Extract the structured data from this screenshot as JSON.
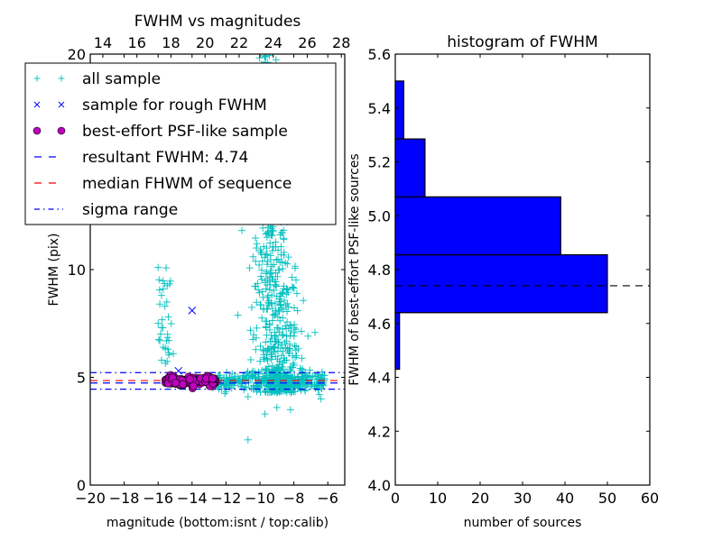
{
  "chart_data": [
    {
      "type": "scatter",
      "title": "FWHM vs magnitudes",
      "xlabel": "magnitude (bottom:isnt / top:calib)",
      "ylabel": "FWHM (pix)",
      "xlim": [
        -20,
        -5
      ],
      "ylim": [
        0,
        20
      ],
      "xticks": [
        -20,
        -18,
        -16,
        -14,
        -12,
        -10,
        -8,
        -6
      ],
      "xtick_labels": [
        "−20",
        "−18",
        "−16",
        "−14",
        "−12",
        "−10",
        "−8",
        "−6"
      ],
      "yticks": [
        0,
        5,
        10,
        20
      ],
      "ytick_labels": [
        "0",
        "5",
        "10",
        "20"
      ],
      "top_axis": {
        "xlim": [
          13.26,
          28.2
        ],
        "xticks": [
          14,
          16,
          18,
          20,
          22,
          24,
          26,
          28
        ],
        "xtick_labels": [
          "14",
          "16",
          "18",
          "20",
          "22",
          "24",
          "26",
          "28"
        ]
      },
      "legend": {
        "placement": "upper-left",
        "entries": [
          {
            "label": "all sample",
            "marker": "plus",
            "color": "#00bfbf"
          },
          {
            "label": "sample for rough FWHM",
            "marker": "x",
            "color": "#0000ff"
          },
          {
            "label": "best-effort PSF-like sample",
            "marker": "circle",
            "color": "#bf00bf"
          },
          {
            "label": "resultant FWHM: 4.74",
            "marker": "dashed-line",
            "color": "#0000ff"
          },
          {
            "label": "median FHWM of sequence",
            "marker": "dashed-line",
            "color": "#ff0000"
          },
          {
            "label": "sigma range",
            "marker": "dashdot-line",
            "color": "#0000ff"
          }
        ]
      },
      "hlines": [
        {
          "name": "resultant FWHM",
          "y": 4.74,
          "style": "dashed",
          "color": "#0000ff"
        },
        {
          "name": "median FWHM",
          "y": 4.85,
          "style": "dashed",
          "color": "#ff0000"
        },
        {
          "name": "sigma range low",
          "y": 4.45,
          "style": "dashdot",
          "color": "#0000ff"
        },
        {
          "name": "sigma range high",
          "y": 5.22,
          "style": "dashdot",
          "color": "#0000ff"
        }
      ],
      "series": [
        {
          "name": "all sample",
          "marker": "plus",
          "color": "#00bfbf",
          "clusters": [
            {
              "desc": "bright outliers",
              "x_range": [
                -16.1,
                -15.2
              ],
              "y_range": [
                5.2,
                10.1
              ],
              "n": 25
            },
            {
              "desc": "faint vertical plume",
              "x_range": [
                -10.5,
                -7.4
              ],
              "y_range": [
                3.5,
                20
              ],
              "n": 650
            },
            {
              "desc": "horizontal band",
              "x_range": [
                -12.5,
                -6.2
              ],
              "y_range": [
                4.3,
                5.3
              ],
              "n": 300
            }
          ],
          "points": [
            {
              "x": -16.0,
              "y": 10.1
            },
            {
              "x": -15.7,
              "y": 9.1
            },
            {
              "x": -15.8,
              "y": 8.8
            },
            {
              "x": -15.9,
              "y": 8.4
            },
            {
              "x": -15.6,
              "y": 8.3
            },
            {
              "x": -15.4,
              "y": 7.8
            },
            {
              "x": -15.8,
              "y": 7.3
            },
            {
              "x": -15.9,
              "y": 6.7
            },
            {
              "x": -15.7,
              "y": 6.4
            },
            {
              "x": -15.1,
              "y": 6.1
            },
            {
              "x": -15.8,
              "y": 5.8
            },
            {
              "x": -10.7,
              "y": 2.1
            },
            {
              "x": -9.7,
              "y": 3.3
            },
            {
              "x": -9.0,
              "y": 3.6
            },
            {
              "x": -8.2,
              "y": 3.5
            },
            {
              "x": -10.7,
              "y": 4.1
            },
            {
              "x": -6.5,
              "y": 4.2
            },
            {
              "x": -6.4,
              "y": 4.0
            }
          ]
        },
        {
          "name": "sample for rough FWHM",
          "marker": "x",
          "color": "#0000ff",
          "points": [
            {
              "x": -14.0,
              "y": 8.1
            },
            {
              "x": -14.8,
              "y": 5.3
            }
          ]
        },
        {
          "name": "best-effort PSF-like sample",
          "marker": "circle",
          "color": "#bf00bf",
          "clusters": [
            {
              "desc": "PSF-like cluster",
              "x_range": [
                -15.6,
                -12.6
              ],
              "y_range": [
                4.5,
                5.2
              ],
              "n": 99
            }
          ]
        }
      ]
    },
    {
      "type": "bar",
      "orientation": "horizontal",
      "title": "histogram of FWHM",
      "xlabel": "number of sources",
      "ylabel": "FWHM of best-effort PSF-like sources",
      "xlim": [
        0,
        60
      ],
      "ylim": [
        4.0,
        5.6
      ],
      "xticks": [
        0,
        10,
        20,
        30,
        40,
        50,
        60
      ],
      "xtick_labels": [
        "0",
        "10",
        "20",
        "30",
        "40",
        "50",
        "60"
      ],
      "yticks": [
        4.0,
        4.2,
        4.4,
        4.6,
        4.8,
        5.0,
        5.2,
        5.4,
        5.6
      ],
      "ytick_labels": [
        "4.0",
        "4.2",
        "4.4",
        "4.6",
        "4.8",
        "5.0",
        "5.2",
        "5.4",
        "5.6"
      ],
      "bins": [
        {
          "low": 4.43,
          "high": 4.64,
          "count": 1
        },
        {
          "low": 4.64,
          "high": 4.855,
          "count": 50
        },
        {
          "low": 4.855,
          "high": 5.07,
          "count": 39
        },
        {
          "low": 5.07,
          "high": 5.285,
          "count": 7
        },
        {
          "low": 5.285,
          "high": 5.5,
          "count": 2
        }
      ],
      "bar_color": "#0000ff",
      "hline": {
        "y": 4.74,
        "style": "dashed",
        "color": "#000000"
      }
    }
  ]
}
